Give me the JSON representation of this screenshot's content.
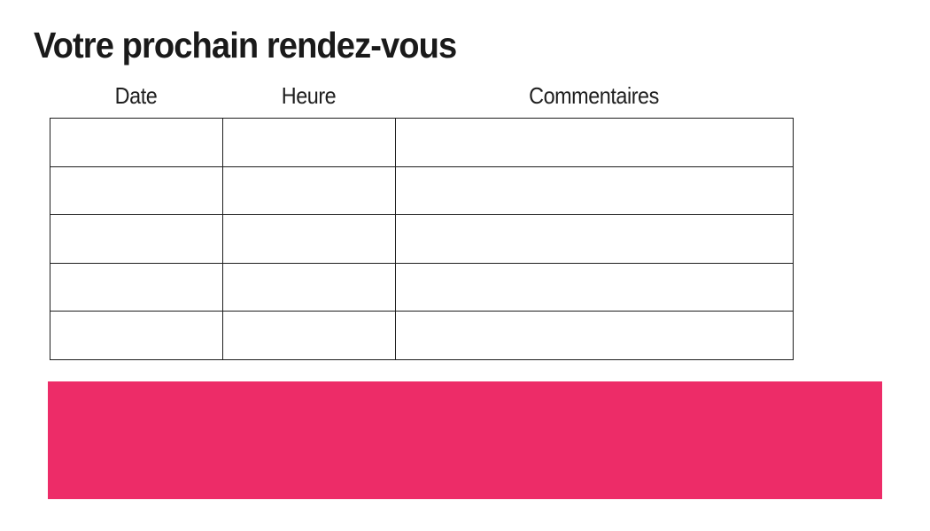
{
  "page": {
    "title": "Votre prochain rendez-vous"
  },
  "table": {
    "columns": [
      {
        "key": "date",
        "label": "Date"
      },
      {
        "key": "heure",
        "label": "Heure"
      },
      {
        "key": "commentaires",
        "label": "Commentaires"
      }
    ],
    "rows": [
      [
        "",
        "",
        ""
      ],
      [
        "",
        "",
        ""
      ],
      [
        "",
        "",
        ""
      ],
      [
        "",
        "",
        ""
      ],
      [
        "",
        "",
        ""
      ]
    ]
  },
  "banner": {
    "text": ""
  },
  "colors": {
    "accent_pink": "#ED2C68",
    "border": "#1D1D1D",
    "text": "#1A1A1A",
    "background": "#FFFFFF"
  }
}
